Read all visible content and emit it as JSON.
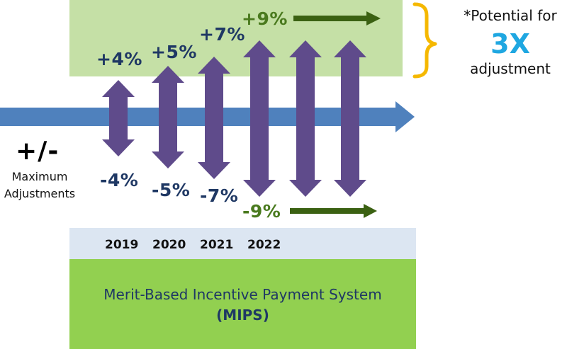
{
  "range_label": "+/-",
  "range_caption_line1": "Maximum",
  "range_caption_line2": "Adjustments",
  "years": [
    "2019",
    "2020",
    "2021",
    "2022"
  ],
  "positive_adjustments": [
    "+4%",
    "+5%",
    "+7%",
    "+9%"
  ],
  "negative_adjustments": [
    "-4%",
    "-5%",
    "-7%",
    "-9%"
  ],
  "program_name": "Merit-Based Incentive Payment System",
  "program_abbr": "(MIPS)",
  "note_line1": "*Potential for",
  "note_emphasis": "3X",
  "note_line2": "adjustment",
  "colors": {
    "top_band": "#c5e0a6",
    "year_band": "#dce6f2",
    "program_band": "#92d050",
    "timeline_arrow": "#4f81bd",
    "adjustment_arrows": "#5f4b8b",
    "continuation_arrows": "#3b6112",
    "brace": "#f5b800",
    "emphasis": "#1fa7e1",
    "label_text": "#1f3864",
    "green_text": "#4a7a1e"
  }
}
